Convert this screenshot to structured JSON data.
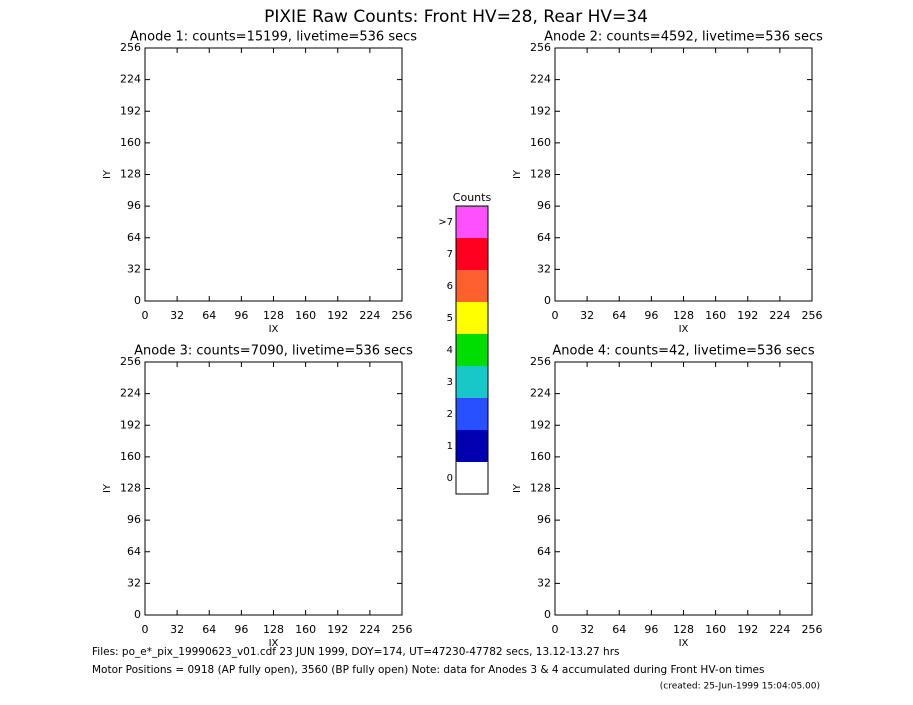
{
  "page_title": "PIXIE Raw Counts:  Front HV=28, Rear HV=34",
  "chart_data": [
    {
      "type": "heatmap",
      "title": "Anode 1: counts=15199, livetime=536 secs",
      "xlabel": "IX",
      "ylabel": "IY",
      "xlim": [
        0,
        256
      ],
      "xticks": [
        0,
        32,
        64,
        96,
        128,
        160,
        192,
        224,
        256
      ],
      "ylim": [
        0,
        256
      ],
      "yticks": [
        0,
        32,
        64,
        96,
        128,
        160,
        192,
        224,
        256
      ]
    },
    {
      "type": "heatmap",
      "title": "Anode 2: counts=4592, livetime=536 secs",
      "xlabel": "IX",
      "ylabel": "IY",
      "xlim": [
        0,
        256
      ],
      "xticks": [
        0,
        32,
        64,
        96,
        128,
        160,
        192,
        224,
        256
      ],
      "ylim": [
        0,
        256
      ],
      "yticks": [
        0,
        32,
        64,
        96,
        128,
        160,
        192,
        224,
        256
      ]
    },
    {
      "type": "heatmap",
      "title": "Anode 3: counts=7090, livetime=536 secs",
      "xlabel": "IX",
      "ylabel": "IY",
      "xlim": [
        0,
        256
      ],
      "xticks": [
        0,
        32,
        64,
        96,
        128,
        160,
        192,
        224,
        256
      ],
      "ylim": [
        0,
        256
      ],
      "yticks": [
        0,
        32,
        64,
        96,
        128,
        160,
        192,
        224,
        256
      ]
    },
    {
      "type": "heatmap",
      "title": "Anode 4: counts=42, livetime=536 secs",
      "xlabel": "IX",
      "ylabel": "IY",
      "xlim": [
        0,
        256
      ],
      "xticks": [
        0,
        32,
        64,
        96,
        128,
        160,
        192,
        224,
        256
      ],
      "ylim": [
        0,
        256
      ],
      "yticks": [
        0,
        32,
        64,
        96,
        128,
        160,
        192,
        224,
        256
      ]
    }
  ],
  "colorbar": {
    "title": "Counts",
    "categories": [
      ">7",
      "7",
      "6",
      "5",
      "4",
      "3",
      "2",
      "1",
      "0"
    ],
    "colors": [
      "#ff50ff",
      "#ff0020",
      "#ff6030",
      "#ffff00",
      "#00dd00",
      "#18c8c8",
      "#2850ff",
      "#0000b0",
      "#ffffff"
    ]
  },
  "footer": [
    "Files: po_e*_pix_19990623_v01.cdf    23 JUN 1999, DOY=174, UT=47230-47782 secs, 13.12-13.27 hrs",
    "Motor Positions = 0918 (AP fully open), 3560 (BP fully open)    Note: data for Anodes 3 & 4 accumulated during Front HV-on times",
    "(created: 25-Jun-1999 15:04:05.00)"
  ]
}
